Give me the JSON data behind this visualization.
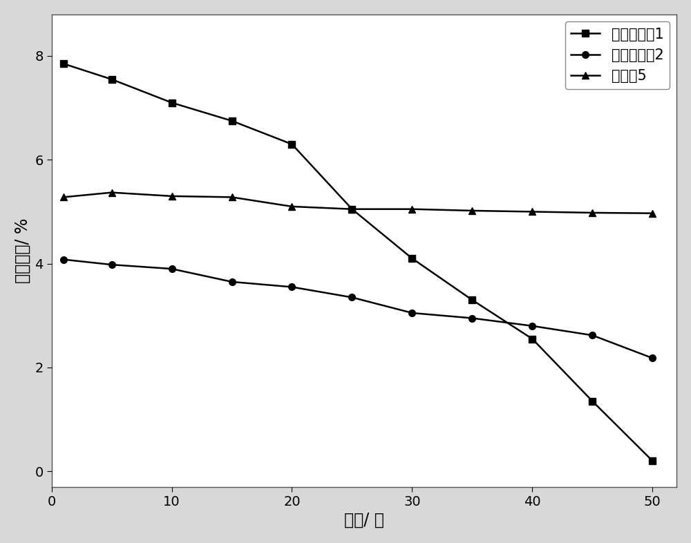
{
  "series1_label": "比较实施例1",
  "series2_label": "比较实施例2",
  "series3_label": "实施例5",
  "series1_x": [
    1,
    5,
    10,
    15,
    20,
    25,
    30,
    35,
    40,
    45,
    50
  ],
  "series1_y": [
    7.85,
    7.55,
    7.1,
    6.75,
    6.3,
    5.05,
    4.1,
    3.3,
    2.55,
    1.35,
    0.2
  ],
  "series2_x": [
    1,
    5,
    10,
    15,
    20,
    25,
    30,
    35,
    40,
    45,
    50
  ],
  "series2_y": [
    4.08,
    3.98,
    3.9,
    3.65,
    3.55,
    3.35,
    3.05,
    2.95,
    2.8,
    2.62,
    2.18
  ],
  "series3_x": [
    1,
    5,
    10,
    15,
    20,
    25,
    30,
    35,
    40,
    45,
    50
  ],
  "series3_y": [
    5.28,
    5.37,
    5.3,
    5.28,
    5.1,
    5.05,
    5.05,
    5.02,
    5.0,
    4.98,
    4.97
  ],
  "xlabel": "时间/ 天",
  "ylabel": "电池效率/ %",
  "xlim": [
    0,
    52
  ],
  "ylim": [
    -0.3,
    8.8
  ],
  "xticks": [
    0,
    10,
    20,
    30,
    40,
    50
  ],
  "yticks": [
    0,
    2,
    4,
    6,
    8
  ],
  "line_color": "#000000",
  "marker_size": 7,
  "linewidth": 1.8,
  "legend_fontsize": 15,
  "axis_fontsize": 17,
  "tick_fontsize": 14,
  "plot_bg": "#ffffff",
  "figure_bg": "#d8d8d8"
}
